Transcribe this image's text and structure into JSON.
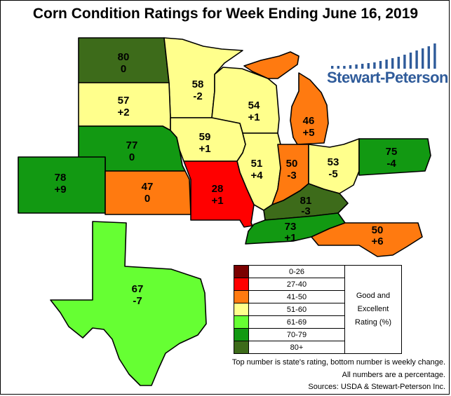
{
  "title": "Corn Condition Ratings for Week Ending June 16, 2019",
  "colors": {
    "dark_red": "#7a0000",
    "red": "#ff0000",
    "orange": "#ff7a10",
    "yellow": "#ffff8c",
    "light_green": "#66ff33",
    "green": "#129912",
    "dark_olive": "#3d6b1a",
    "brand_blue": "#2f5b9a"
  },
  "states": [
    {
      "id": "ND",
      "rating": "80",
      "change": "0",
      "color": "#3d6b1a"
    },
    {
      "id": "MN",
      "rating": "58",
      "change": "-2",
      "color": "#ffff8c"
    },
    {
      "id": "SD",
      "rating": "57",
      "change": "+2",
      "color": "#ffff8c"
    },
    {
      "id": "WI",
      "rating": "54",
      "change": "+1",
      "color": "#ffff8c"
    },
    {
      "id": "MI",
      "rating": "46",
      "change": "+5",
      "color": "#ff7a10"
    },
    {
      "id": "NE",
      "rating": "77",
      "change": "0",
      "color": "#129912"
    },
    {
      "id": "IA",
      "rating": "59",
      "change": "+1",
      "color": "#ffff8c"
    },
    {
      "id": "IL",
      "rating": "51",
      "change": "+4",
      "color": "#ffff8c"
    },
    {
      "id": "IN",
      "rating": "50",
      "change": "-3",
      "color": "#ff7a10"
    },
    {
      "id": "OH",
      "rating": "53",
      "change": "-5",
      "color": "#ffff8c"
    },
    {
      "id": "PA",
      "rating": "75",
      "change": "-4",
      "color": "#129912"
    },
    {
      "id": "CO",
      "rating": "78",
      "change": "+9",
      "color": "#129912"
    },
    {
      "id": "KS",
      "rating": "47",
      "change": "0",
      "color": "#ff7a10"
    },
    {
      "id": "MO",
      "rating": "28",
      "change": "+1",
      "color": "#ff0000"
    },
    {
      "id": "KY",
      "rating": "81",
      "change": "-3",
      "color": "#3d6b1a"
    },
    {
      "id": "TN",
      "rating": "73",
      "change": "+1",
      "color": "#129912"
    },
    {
      "id": "NC",
      "rating": "50",
      "change": "+6",
      "color": "#ff7a10"
    },
    {
      "id": "TX",
      "rating": "67",
      "change": "-7",
      "color": "#66ff33"
    }
  ],
  "legend": {
    "items": [
      {
        "range": "0-26",
        "color": "#7a0000"
      },
      {
        "range": "27-40",
        "color": "#ff0000"
      },
      {
        "range": "41-50",
        "color": "#ff7a10"
      },
      {
        "range": "51-60",
        "color": "#ffff8c"
      },
      {
        "range": "61-69",
        "color": "#66ff33"
      },
      {
        "range": "70-79",
        "color": "#129912"
      },
      {
        "range": "80+",
        "color": "#3d6b1a"
      }
    ],
    "side_label_1": "Good and",
    "side_label_2": "Excellent",
    "side_label_3": "Rating (%)"
  },
  "notes": {
    "line1": "Top number is state's rating, bottom number is weekly change.",
    "line2": "All numbers are a percentage.",
    "line3": "Sources: USDA & Stewart-Peterson Inc."
  },
  "logo": {
    "text": "Stewart-Peterson"
  }
}
